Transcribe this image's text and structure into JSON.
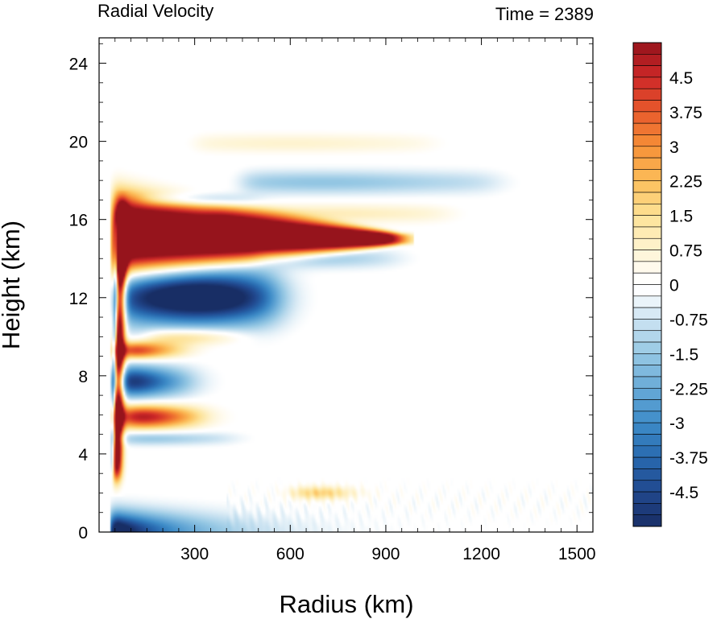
{
  "chart_data": {
    "type": "heatmap",
    "title_left": "Radial Velocity",
    "title_right": "Time = 2389",
    "xlabel": "Radius (km)",
    "ylabel": "Height (km)",
    "xlim": [
      0,
      1550
    ],
    "ylim": [
      0,
      25.3
    ],
    "x_ticks": [
      300,
      600,
      900,
      1200,
      1500
    ],
    "x_tick_labels": [
      "300",
      "600",
      "900",
      "1200",
      "1500"
    ],
    "y_ticks": [
      0,
      4,
      8,
      12,
      16,
      20,
      24
    ],
    "y_tick_labels": [
      "0",
      "4",
      "8",
      "12",
      "16",
      "20",
      "24"
    ],
    "colorbar": {
      "min": -5.25,
      "max": 5.25,
      "step": 0.25,
      "labels": [
        {
          "value": 4.5,
          "text": "4.5"
        },
        {
          "value": 3.75,
          "text": "3.75"
        },
        {
          "value": 3,
          "text": "3"
        },
        {
          "value": 2.25,
          "text": "2.25"
        },
        {
          "value": 1.5,
          "text": "1.5"
        },
        {
          "value": 0.75,
          "text": "0.75"
        },
        {
          "value": 0,
          "text": "0"
        },
        {
          "value": -0.75,
          "text": "-0.75"
        },
        {
          "value": -1.5,
          "text": "-1.5"
        },
        {
          "value": -2.25,
          "text": "-2.25"
        },
        {
          "value": -3,
          "text": "-3"
        },
        {
          "value": -3.75,
          "text": "-3.75"
        },
        {
          "value": -4.5,
          "text": "-4.5"
        }
      ]
    },
    "features": [
      {
        "kind": "outflow",
        "value": 5.0,
        "r0": 45,
        "r1": 950,
        "z": 15.0,
        "thick0": 2.2,
        "thick1": 0.3
      },
      {
        "kind": "eyewall_pos",
        "value": 5.0,
        "r": 55,
        "z0": 2.8,
        "z1": 16.5,
        "width": 18
      },
      {
        "kind": "eyewall_neg",
        "value": -3.0,
        "r": 40,
        "z0": 3.0,
        "z1": 16.0,
        "width": 7
      },
      {
        "kind": "jet",
        "value": -5.0,
        "r0": 60,
        "r1": 560,
        "z": 12.0,
        "thick": 1.4,
        "rpeak": 310
      },
      {
        "kind": "jet",
        "value": -1.2,
        "r0": 450,
        "r1": 1250,
        "z": 17.9,
        "thick": 0.6,
        "rpeak": 700
      },
      {
        "kind": "jet",
        "value": -1.0,
        "r0": 500,
        "r1": 940,
        "z": 14.0,
        "thick": 0.5,
        "rpeak": 700
      },
      {
        "kind": "jet",
        "value": -1.3,
        "r0": 130,
        "r1": 480,
        "z": 17.0,
        "thick": 0.35,
        "rpeak": 260
      },
      {
        "kind": "jet",
        "value": 0.8,
        "r0": 350,
        "r1": 1100,
        "z": 16.3,
        "thick": 0.5,
        "rpeak": 700
      },
      {
        "kind": "jet",
        "value": 0.6,
        "r0": 300,
        "r1": 1050,
        "z": 19.9,
        "thick": 0.5,
        "rpeak": 600
      },
      {
        "kind": "jet",
        "value": 3.5,
        "r0": 60,
        "r1": 260,
        "z": 9.3,
        "thick": 0.45,
        "rpeak": 100
      },
      {
        "kind": "jet",
        "value": 1.5,
        "r0": 150,
        "r1": 450,
        "z": 10.0,
        "thick": 0.45,
        "rpeak": 270
      },
      {
        "kind": "jet",
        "value": -4.0,
        "r0": 50,
        "r1": 280,
        "z": 7.7,
        "thick": 0.8,
        "rpeak": 90
      },
      {
        "kind": "jet",
        "value": 3.8,
        "r0": 55,
        "r1": 320,
        "z": 5.9,
        "thick": 0.6,
        "rpeak": 130
      },
      {
        "kind": "jet",
        "value": -1.2,
        "r0": 60,
        "r1": 420,
        "z": 4.8,
        "thick": 0.35,
        "rpeak": 150
      },
      {
        "kind": "jet",
        "value": 1.5,
        "r0": 600,
        "r1": 800,
        "z": 2.0,
        "thick": 0.35,
        "rpeak": 700
      },
      {
        "kind": "inflow",
        "value": -5.0,
        "r0": 35,
        "r1": 900,
        "z": 0.0,
        "thick": 1.0
      }
    ]
  }
}
